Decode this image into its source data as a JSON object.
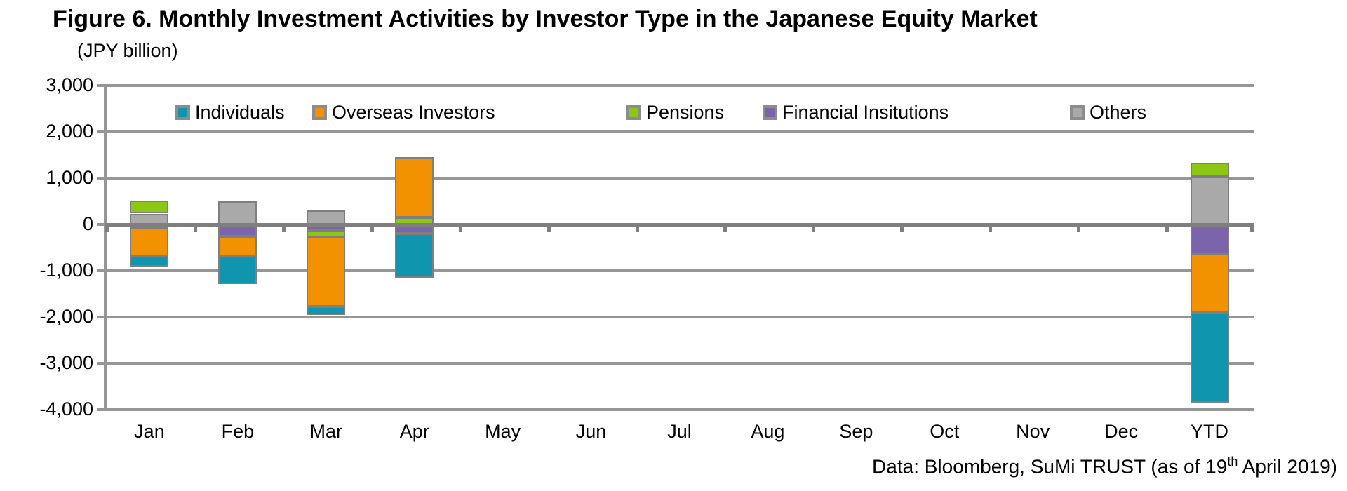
{
  "title": "Figure 6. Monthly Investment Activities by Investor Type in the Japanese Equity Market",
  "axis_unit_label": "(JPY billion)",
  "footer": {
    "prefix": "Data: Bloomberg, SuMi TRUST (as of 19",
    "superscript": "th",
    "suffix": " April 2019)"
  },
  "colors": {
    "individuals": "#1095AF",
    "overseas_investors": "#F29200",
    "pensions": "#8CC714",
    "financial_institutions": "#7B64A9",
    "others": "#A9A9A9",
    "segment_border": "#7F7F7F",
    "gridline": "#969696",
    "zero_axis": "#7F7F7F",
    "text": "#000000"
  },
  "chart_data": {
    "type": "bar",
    "stacked": true,
    "title": "Figure 6. Monthly Investment Activities by Investor Type in the Japanese Equity Market",
    "ylabel": "(JPY billion)",
    "xlabel": "",
    "grid": true,
    "legend_position": "top-inside",
    "ylim": [
      -4000,
      3000
    ],
    "ytick_step": 1000,
    "yticks": [
      {
        "value": 3000,
        "label": "3,000"
      },
      {
        "value": 2000,
        "label": "2,000"
      },
      {
        "value": 1000,
        "label": "1,000"
      },
      {
        "value": 0,
        "label": "0"
      },
      {
        "value": -1000,
        "label": "-1,000"
      },
      {
        "value": -2000,
        "label": "-2,000"
      },
      {
        "value": -3000,
        "label": "-3,000"
      },
      {
        "value": -4000,
        "label": "-4,000"
      }
    ],
    "categories": [
      "Jan",
      "Feb",
      "Mar",
      "Apr",
      "May",
      "Jun",
      "Jul",
      "Aug",
      "Sep",
      "Oct",
      "Nov",
      "Dec",
      "YTD"
    ],
    "series": [
      {
        "name": "Individuals",
        "color": "#1095AF",
        "values": [
          -220,
          -610,
          -180,
          -950,
          0,
          0,
          0,
          0,
          0,
          0,
          0,
          0,
          -1960
        ]
      },
      {
        "name": "Overseas Investors",
        "color": "#F29200",
        "values": [
          -620,
          -430,
          -1510,
          1300,
          0,
          0,
          0,
          0,
          0,
          0,
          0,
          0,
          -1260
        ]
      },
      {
        "name": "Pensions",
        "color": "#8CC714",
        "values": [
          280,
          0,
          -130,
          150,
          0,
          0,
          0,
          0,
          0,
          0,
          0,
          0,
          300
        ]
      },
      {
        "name": "Financial Insitutions",
        "color": "#7B64A9",
        "values": [
          -60,
          -250,
          -130,
          -200,
          0,
          0,
          0,
          0,
          0,
          0,
          0,
          0,
          -640
        ]
      },
      {
        "name": "Others",
        "color": "#A9A9A9",
        "values": [
          230,
          500,
          300,
          0,
          0,
          0,
          0,
          0,
          0,
          0,
          0,
          0,
          1030
        ]
      }
    ],
    "stack_order_from_zero": [
      "Others",
      "Financial Insitutions",
      "Pensions",
      "Overseas Investors",
      "Individuals"
    ]
  }
}
